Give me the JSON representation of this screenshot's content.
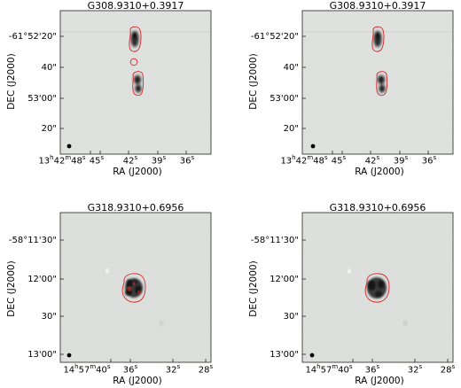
{
  "panels": [
    {
      "title": "G308.9310+0.3917",
      "xlabel": "RA (J2000)",
      "ylabel": "DEC (J2000)",
      "yticks": [
        "-61°52'20\"",
        "40\"",
        "53'00\"",
        "20\""
      ],
      "xticks": [
        {
          "main": "13",
          "h": "h",
          "m2": "42",
          "m": "m",
          "s2": "48",
          "s": "s"
        },
        {
          "main": "45",
          "s": "s"
        },
        {
          "main": "42",
          "s": "s"
        },
        {
          "main": "39",
          "s": "s"
        },
        {
          "main": "36",
          "s": "s"
        }
      ]
    },
    {
      "title": "G308.9310+0.3917",
      "xlabel": "RA (J2000)",
      "ylabel": "DEC (J2000)",
      "yticks": [
        "-61°52'20\"",
        "40\"",
        "53'00\"",
        "20\""
      ],
      "xticks": [
        {
          "main": "13",
          "h": "h",
          "m2": "42",
          "m": "m",
          "s2": "48",
          "s": "s"
        },
        {
          "main": "45",
          "s": "s"
        },
        {
          "main": "42",
          "s": "s"
        },
        {
          "main": "39",
          "s": "s"
        },
        {
          "main": "36",
          "s": "s"
        }
      ]
    },
    {
      "title": "G318.9310+0.6956",
      "xlabel": "RA (J2000)",
      "ylabel": "DEC (J2000)",
      "yticks": [
        "-58°11'30\"",
        "12'00\"",
        "30\"",
        "13'00\""
      ],
      "xticks": [
        {
          "main": "14",
          "h": "h",
          "m2": "57",
          "m": "m",
          "s2": "40",
          "s": "s"
        },
        {
          "main": "36",
          "s": "s"
        },
        {
          "main": "32",
          "s": "s"
        },
        {
          "main": "28",
          "s": "s"
        }
      ]
    },
    {
      "title": "G318.9310+0.6956",
      "xlabel": "RA (J2000)",
      "ylabel": "DEC (J2000)",
      "yticks": [
        "-58°11'30\"",
        "12'00\"",
        "30\"",
        "13'00\""
      ],
      "xticks": [
        {
          "main": "14",
          "h": "h",
          "m2": "57",
          "m": "m",
          "s2": "40",
          "s": "s"
        },
        {
          "main": "36",
          "s": "s"
        },
        {
          "main": "32",
          "s": "s"
        },
        {
          "main": "28",
          "s": "s"
        }
      ]
    }
  ],
  "colors": {
    "contour": "#d62728",
    "background": "#e2e4e2",
    "source": "#1a1a1a"
  }
}
